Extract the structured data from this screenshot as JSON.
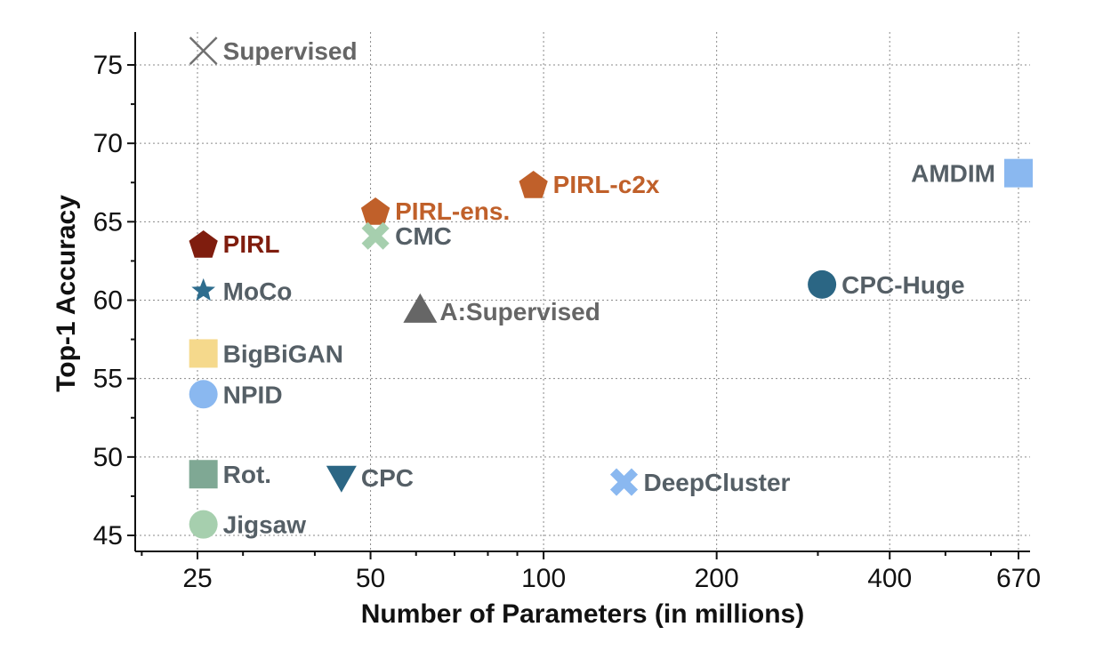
{
  "chart_data": {
    "type": "scatter",
    "xlabel": "Number of Parameters (in millions)",
    "ylabel": "Top-1 Accuracy",
    "x_scale": "log",
    "xlim": [
      19,
      700
    ],
    "ylim": [
      44,
      77
    ],
    "x_ticks": [
      25,
      50,
      100,
      200,
      400,
      670
    ],
    "x_tick_labels": [
      "25",
      "50",
      "100",
      "200",
      "400",
      "670"
    ],
    "y_ticks": [
      45,
      50,
      55,
      60,
      65,
      70,
      75
    ],
    "y_tick_labels": [
      "45",
      "50",
      "55",
      "60",
      "65",
      "70",
      "75"
    ],
    "grid": true,
    "points": [
      {
        "label": "Supervised",
        "x": 25.6,
        "y": 75.9,
        "marker": "x-thin",
        "color": "#707070",
        "label_color": "#666666"
      },
      {
        "label": "PIRL",
        "x": 25.6,
        "y": 63.6,
        "marker": "pentagon",
        "color": "#7f1d0e",
        "label_color": "#7f1d0e"
      },
      {
        "label": "MoCo",
        "x": 25.6,
        "y": 60.6,
        "marker": "star",
        "color": "#2e6d8e",
        "label_color": "#555f66"
      },
      {
        "label": "BigBiGAN",
        "x": 25.6,
        "y": 56.6,
        "marker": "square",
        "color": "#f5d98c",
        "label_color": "#555f66"
      },
      {
        "label": "NPID",
        "x": 25.6,
        "y": 54.0,
        "marker": "circle",
        "color": "#8ab8f0",
        "label_color": "#555f66"
      },
      {
        "label": "Rot.",
        "x": 25.6,
        "y": 48.9,
        "marker": "square",
        "color": "#7fa894",
        "label_color": "#555f66"
      },
      {
        "label": "Jigsaw",
        "x": 25.6,
        "y": 45.7,
        "marker": "circle",
        "color": "#a6cfae",
        "label_color": "#555f66"
      },
      {
        "label": "CPC",
        "x": 44.5,
        "y": 48.7,
        "marker": "triangle-down",
        "color": "#2b6684",
        "label_color": "#555f66"
      },
      {
        "label": "PIRL-ens.",
        "x": 51,
        "y": 65.7,
        "marker": "pentagon",
        "color": "#c0602a",
        "label_color": "#c0602a"
      },
      {
        "label": "CMC",
        "x": 51,
        "y": 64.1,
        "marker": "x-bold",
        "color": "#a6cfae",
        "label_color": "#555f66"
      },
      {
        "label": "A:Supervised",
        "x": 61,
        "y": 59.3,
        "marker": "triangle-up",
        "color": "#666666",
        "label_color": "#666666"
      },
      {
        "label": "PIRL-c2x",
        "x": 96,
        "y": 67.4,
        "marker": "pentagon",
        "color": "#c0602a",
        "label_color": "#c0602a"
      },
      {
        "label": "DeepCluster",
        "x": 138,
        "y": 48.4,
        "marker": "x-bold",
        "color": "#8ab8f0",
        "label_color": "#555f66"
      },
      {
        "label": "CPC-Huge",
        "x": 305,
        "y": 61.0,
        "marker": "circle",
        "color": "#2b6684",
        "label_color": "#555f66"
      },
      {
        "label": "AMDIM",
        "x": 670,
        "y": 68.1,
        "marker": "square",
        "color": "#8ab8f0",
        "label_color": "#555f66",
        "label_side": "left"
      }
    ]
  }
}
